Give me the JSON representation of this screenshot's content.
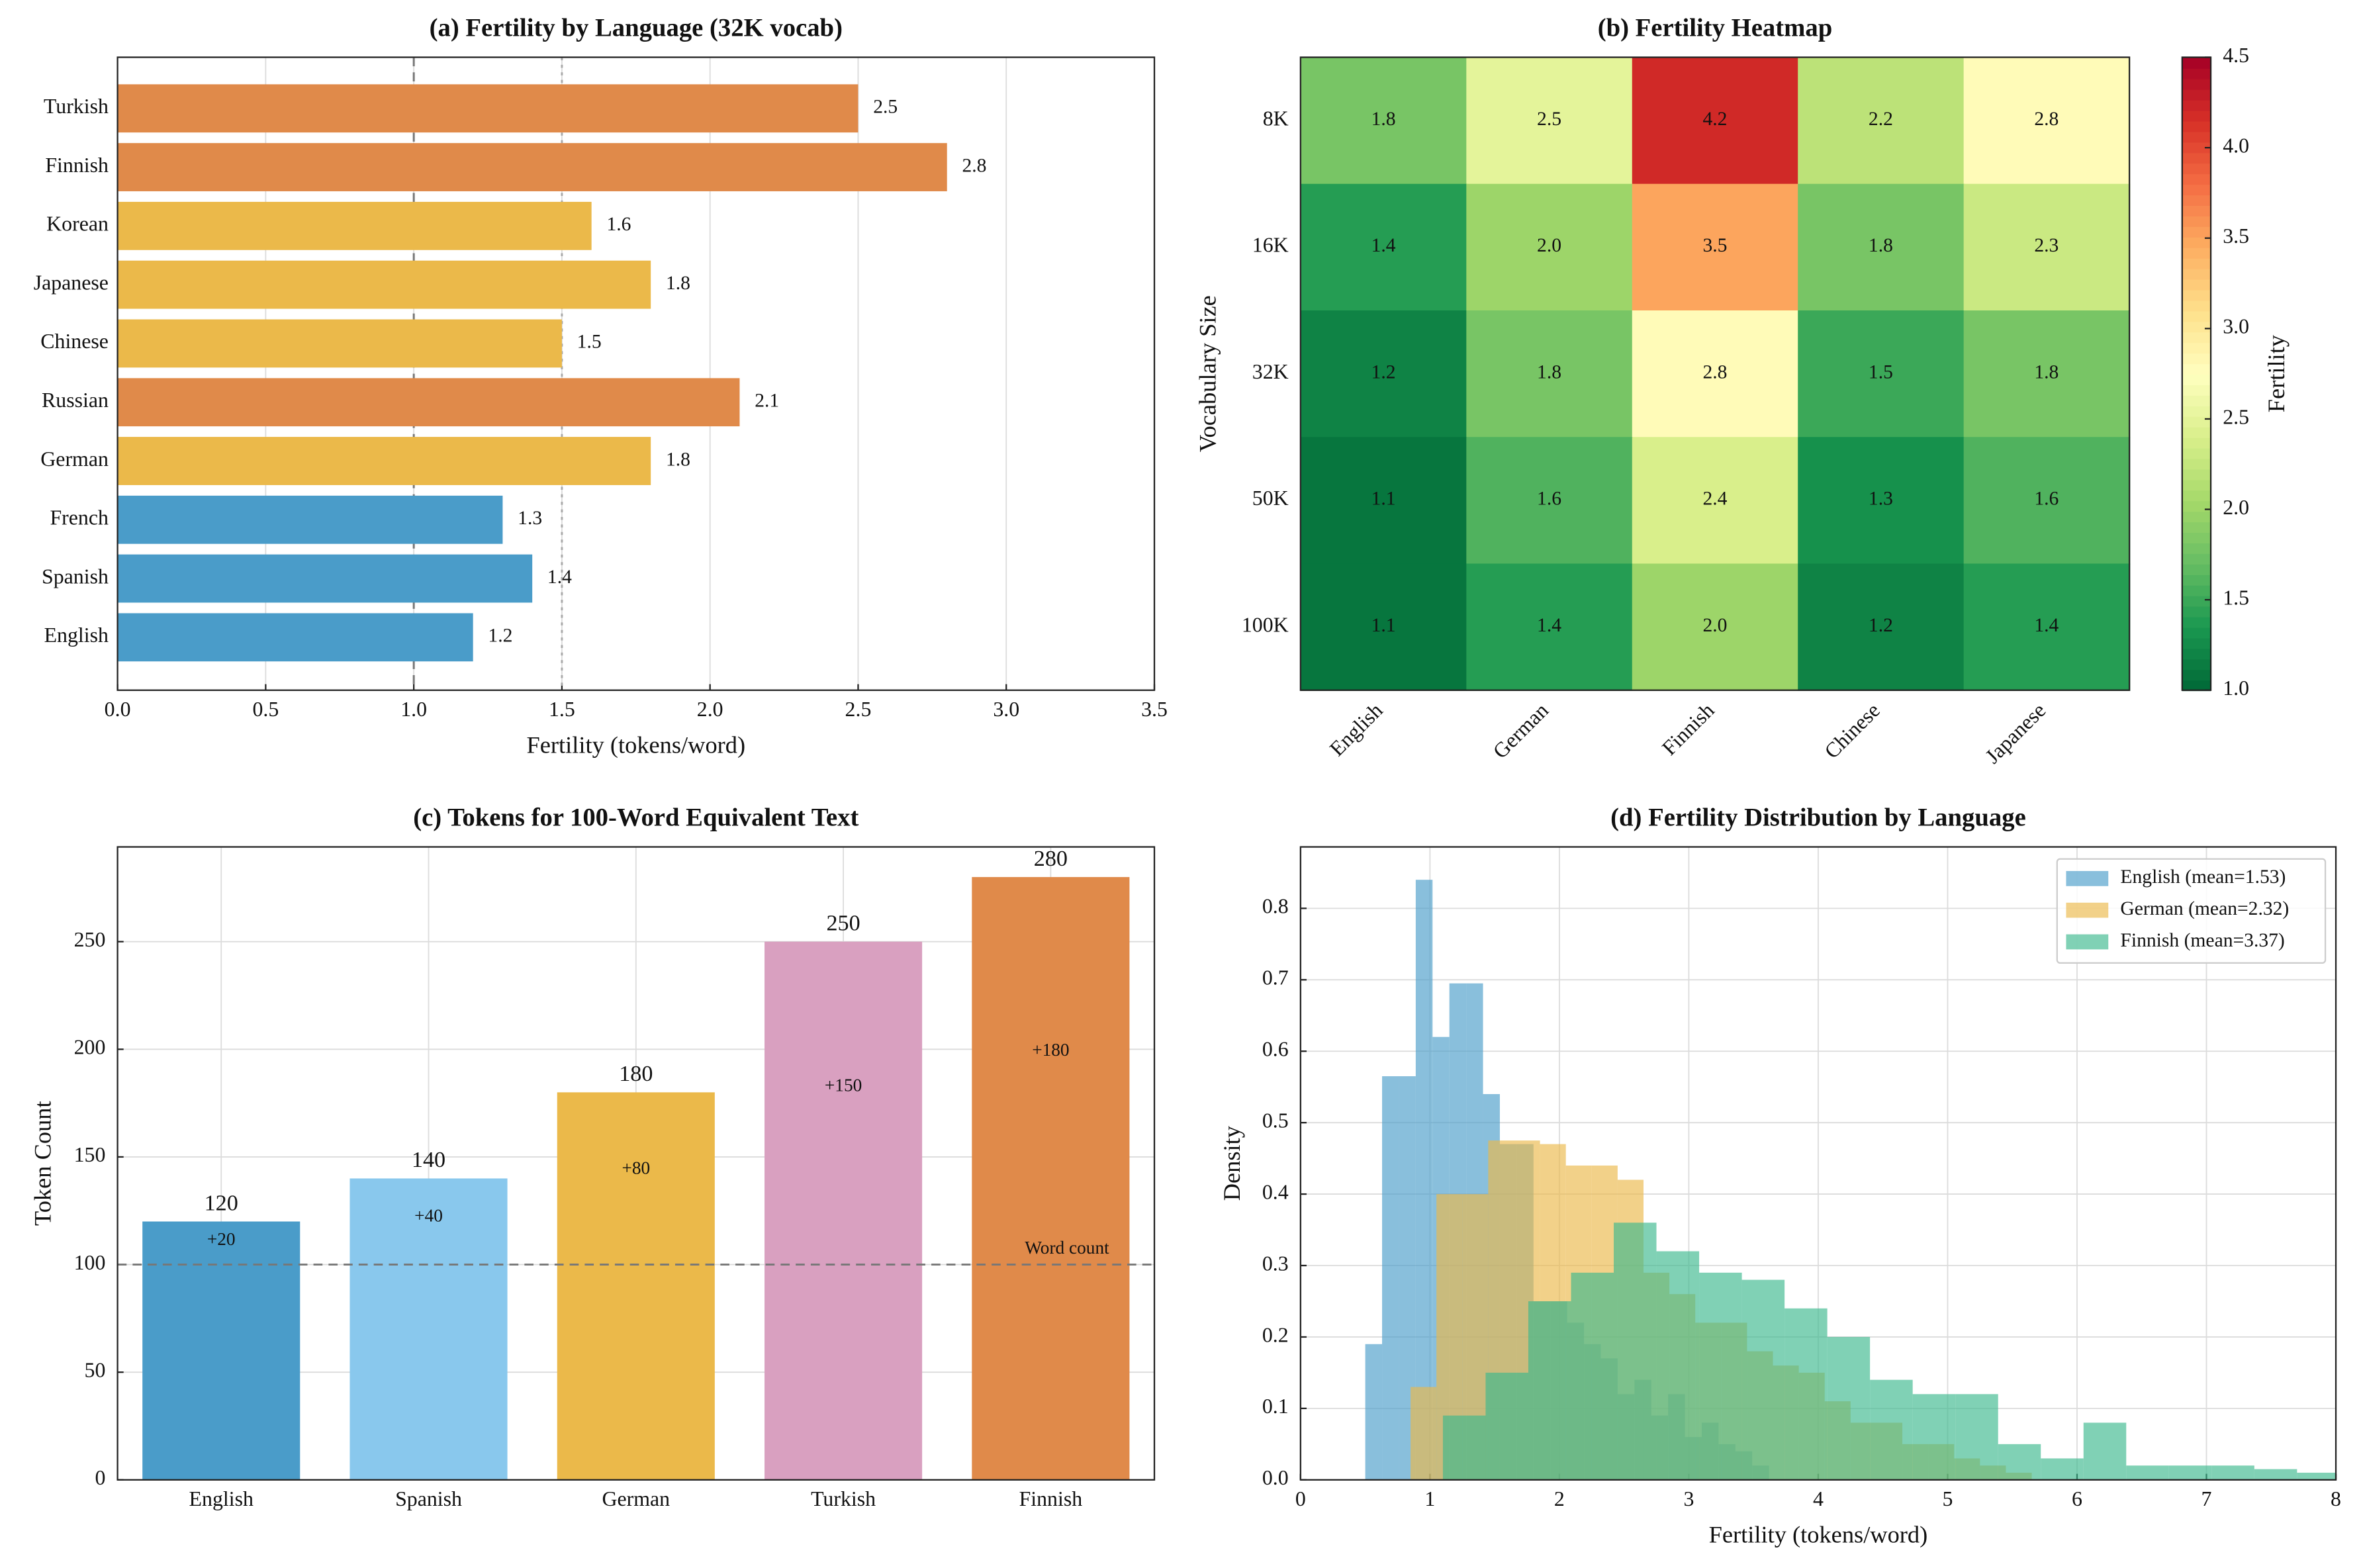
{
  "chart_data": [
    {
      "type": "barh",
      "title": "(a) Fertility by Language (32K vocab)",
      "xlabel": "Fertility (tokens/word)",
      "categories": [
        "English",
        "Spanish",
        "French",
        "German",
        "Russian",
        "Chinese",
        "Japanese",
        "Korean",
        "Finnish",
        "Turkish"
      ],
      "values": [
        1.2,
        1.4,
        1.3,
        1.8,
        2.1,
        1.5,
        1.8,
        1.6,
        2.8,
        2.5
      ],
      "colors": [
        "#4a9cc9",
        "#4a9cc9",
        "#4a9cc9",
        "#ebb94a",
        "#e08a4a",
        "#ebb94a",
        "#ebb94a",
        "#ebb94a",
        "#e08a4a",
        "#e08a4a"
      ],
      "xlim": [
        0,
        3.5
      ],
      "xticks": [
        {
          "value": 0,
          "label": "0.0"
        },
        0.5,
        {
          "value": 1,
          "label": "1.0"
        },
        1.5,
        {
          "value": 2,
          "label": "2.0"
        },
        2.5,
        {
          "value": 3,
          "label": "3.0"
        },
        3.5
      ],
      "grid": true,
      "vlines": [
        {
          "value": 1,
          "dash": "6 4",
          "color": "#777777"
        },
        {
          "value": 1.5,
          "dash": "2 3",
          "color": "#aaaaaa"
        }
      ]
    },
    {
      "type": "heatmap",
      "title": "(b) Fertility Heatmap",
      "ylabel": "Vocabulary Size",
      "x_categories": [
        "English",
        "German",
        "Finnish",
        "Chinese",
        "Japanese"
      ],
      "y_categories": [
        "8K",
        "16K",
        "32K",
        "50K",
        "100K"
      ],
      "values": [
        [
          1.8,
          2.5,
          4.2,
          2.2,
          2.8
        ],
        [
          1.4,
          2.0,
          3.5,
          1.8,
          2.3
        ],
        [
          1.2,
          1.8,
          2.8,
          1.5,
          1.8
        ],
        [
          1.1,
          1.6,
          2.4,
          1.3,
          1.6
        ],
        [
          1.1,
          1.4,
          2.0,
          1.2,
          1.4
        ]
      ],
      "value_labels": [
        [
          "1.8",
          "2.5",
          "4.2",
          "2.2",
          "2.8"
        ],
        [
          "1.4",
          "2.0",
          "3.5",
          "1.8",
          "2.3"
        ],
        [
          "1.2",
          "1.8",
          "2.8",
          "1.5",
          "1.8"
        ],
        [
          "1.1",
          "1.6",
          "2.4",
          "1.3",
          "1.6"
        ],
        [
          "1.1",
          "1.4",
          "2.0",
          "1.2",
          "1.4"
        ]
      ],
      "colormap": "RdYlGn_r",
      "clim": [
        1.0,
        4.5
      ],
      "cticks": [
        {
          "value": 1,
          "label": "1.0"
        },
        1.5,
        {
          "value": 2,
          "label": "2.0"
        },
        2.5,
        {
          "value": 3,
          "label": "3.0"
        },
        3.5,
        {
          "value": 4,
          "label": "4.0"
        },
        4.5
      ],
      "colorbar_label": "Fertility"
    },
    {
      "type": "bar",
      "title": "(c) Tokens for 100-Word Equivalent Text",
      "ylabel": "Token Count",
      "categories": [
        "English",
        "Spanish",
        "German",
        "Turkish",
        "Finnish"
      ],
      "values": [
        120,
        140,
        180,
        250,
        280
      ],
      "colors": [
        "#4a9cc9",
        "#89c8ed",
        "#ebb94a",
        "#d9a0c0",
        "#e08a4a"
      ],
      "annotations": [
        "+20",
        "+40",
        "+80",
        "+150",
        "+180"
      ],
      "annotation_color": "#d2691e",
      "ylim": [
        0,
        294
      ],
      "yticks": [
        0,
        50,
        100,
        150,
        200,
        250
      ],
      "grid": true,
      "hline": {
        "value": 100,
        "label": "Word count"
      }
    },
    {
      "type": "histogram",
      "title": "(d) Fertility Distribution by Language",
      "xlabel": "Fertility (tokens/word)",
      "ylabel": "Density",
      "series": [
        {
          "name": "English (mean=1.53)",
          "color": "#4a9cc9",
          "bins": [
            0.5,
            0.63,
            0.76,
            0.89,
            1.02,
            1.15,
            1.28,
            1.41,
            1.54,
            1.67,
            1.8,
            1.93,
            2.06,
            2.19,
            2.32,
            2.45,
            2.58,
            2.71,
            2.84,
            2.97,
            3.1,
            3.23,
            3.36,
            3.49,
            3.62
          ],
          "values": [
            0.19,
            0.565,
            0.565,
            0.84,
            0.62,
            0.695,
            0.695,
            0.54,
            0.47,
            0.47,
            0.25,
            0.25,
            0.22,
            0.19,
            0.17,
            0.12,
            0.14,
            0.09,
            0.12,
            0.06,
            0.08,
            0.05,
            0.04,
            0.02
          ]
        },
        {
          "name": "German (mean=2.32)",
          "color": "#ebb94a",
          "bins": [
            0.85,
            1.05,
            1.25,
            1.45,
            1.65,
            1.85,
            2.05,
            2.25,
            2.45,
            2.65,
            2.85,
            3.05,
            3.25,
            3.45,
            3.65,
            3.85,
            4.05,
            4.25,
            4.45,
            4.65,
            4.85,
            5.05,
            5.25,
            5.45,
            5.65
          ],
          "values": [
            0.13,
            0.4,
            0.4,
            0.475,
            0.475,
            0.47,
            0.44,
            0.44,
            0.42,
            0.29,
            0.26,
            0.22,
            0.22,
            0.18,
            0.16,
            0.15,
            0.11,
            0.08,
            0.08,
            0.05,
            0.05,
            0.03,
            0.02,
            0.01
          ]
        },
        {
          "name": "Finnish (mean=3.37)",
          "color": "#3cb98e",
          "bins": [
            1.1,
            1.43,
            1.76,
            2.09,
            2.42,
            2.75,
            3.08,
            3.41,
            3.74,
            4.07,
            4.4,
            4.73,
            5.06,
            5.39,
            5.72,
            6.05,
            6.38,
            6.71,
            7.04,
            7.37,
            7.7,
            8.03
          ],
          "values": [
            0.09,
            0.15,
            0.25,
            0.29,
            0.36,
            0.32,
            0.29,
            0.28,
            0.24,
            0.2,
            0.14,
            0.12,
            0.12,
            0.05,
            0.03,
            0.08,
            0.02,
            0.02,
            0.02,
            0.015,
            0.01
          ]
        }
      ],
      "xlim": [
        0,
        8
      ],
      "xticks": [
        0,
        1,
        2,
        3,
        4,
        5,
        6,
        7,
        8
      ],
      "ylim": [
        0,
        0.886
      ],
      "yticks": [
        {
          "value": 0,
          "label": "0.0"
        },
        0.1,
        0.2,
        0.3,
        0.4,
        0.5,
        0.6,
        0.7,
        0.8
      ],
      "grid": true,
      "legend": "upper right"
    }
  ]
}
